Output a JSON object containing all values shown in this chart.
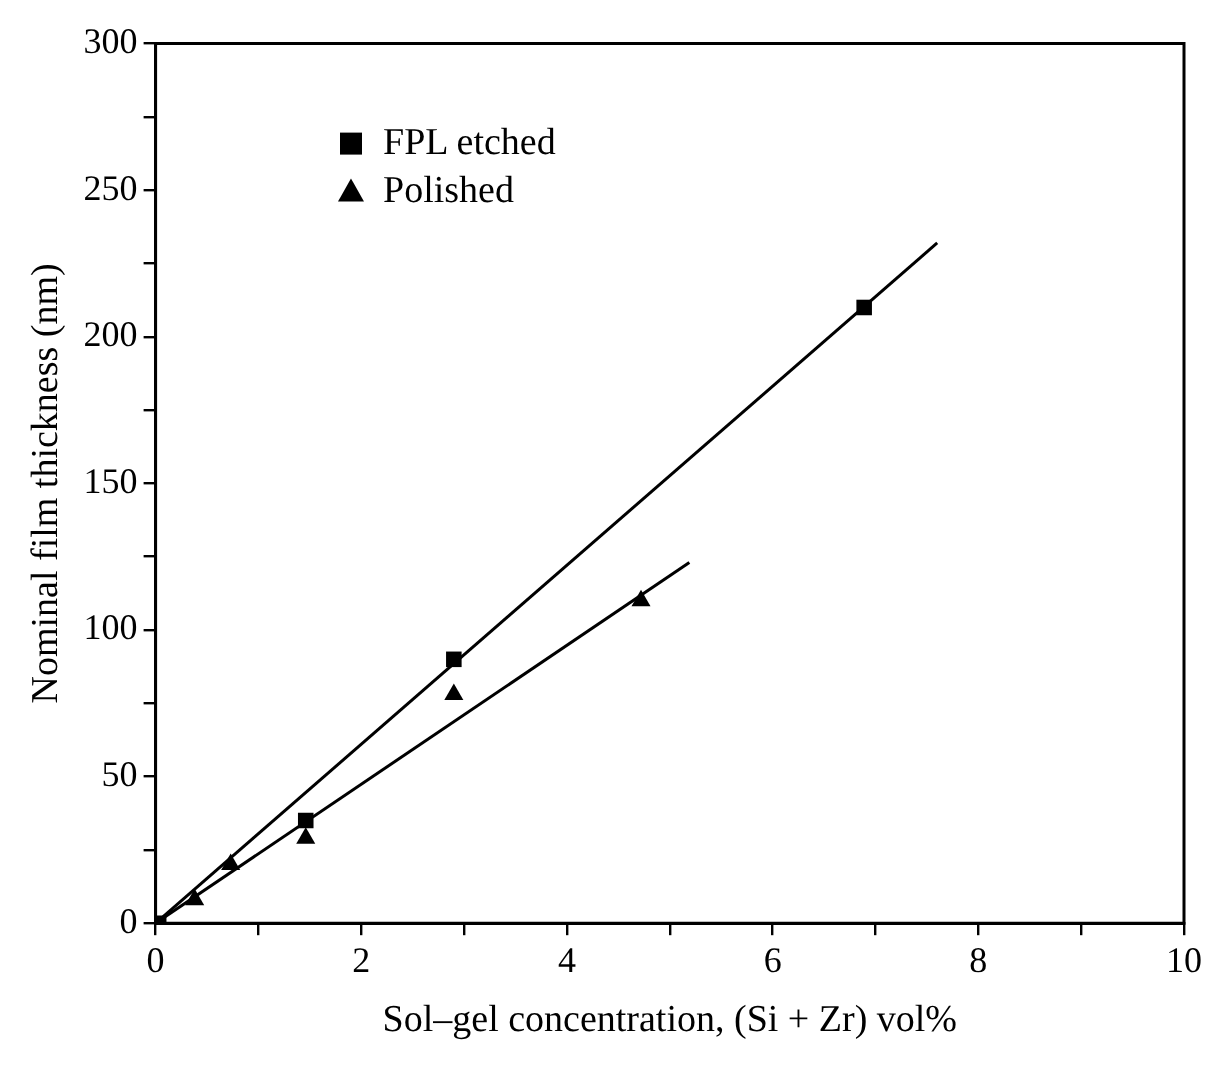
{
  "chart_data": {
    "type": "scatter",
    "xlabel": "Sol–gel concentration, (Si + Zr) vol%",
    "ylabel": "Nominal film thickness (nm)",
    "xlim": [
      0,
      10
    ],
    "ylim": [
      0,
      300
    ],
    "xticks": [
      0,
      {
        "value": 1,
        "label": null
      },
      2,
      {
        "value": 3,
        "label": null
      },
      4,
      {
        "value": 5,
        "label": null
      },
      6,
      {
        "value": 7,
        "label": null
      },
      8,
      {
        "value": 9,
        "label": null
      },
      10
    ],
    "yticks": [
      0,
      {
        "value": 25,
        "label": null
      },
      50,
      {
        "value": 75,
        "label": null
      },
      100,
      {
        "value": 125,
        "label": null
      },
      150,
      {
        "value": 175,
        "label": null
      },
      200,
      {
        "value": 225,
        "label": null
      },
      250,
      {
        "value": 275,
        "label": null
      },
      300
    ],
    "grid": false,
    "legend": "top left",
    "series": [
      {
        "name": "FPL etched",
        "color": "#000000",
        "marker": "square",
        "x": [
          0.03,
          1.46,
          2.9,
          6.89
        ],
        "values": [
          0,
          35,
          90,
          210
        ]
      },
      {
        "name": "Polished",
        "color": "#000000",
        "marker": "triangle",
        "x": [
          0.38,
          0.73,
          1.46,
          2.9,
          4.72
        ],
        "values": [
          8,
          20,
          29,
          78,
          110
        ]
      },
      {
        "type": "line",
        "color": "#000000",
        "marker": "none",
        "x": [
          0,
          7.6
        ],
        "values": [
          0,
          232
        ]
      },
      {
        "type": "line",
        "color": "#000000",
        "marker": "none",
        "x": [
          0,
          5.19
        ],
        "values": [
          0,
          123
        ]
      }
    ]
  }
}
